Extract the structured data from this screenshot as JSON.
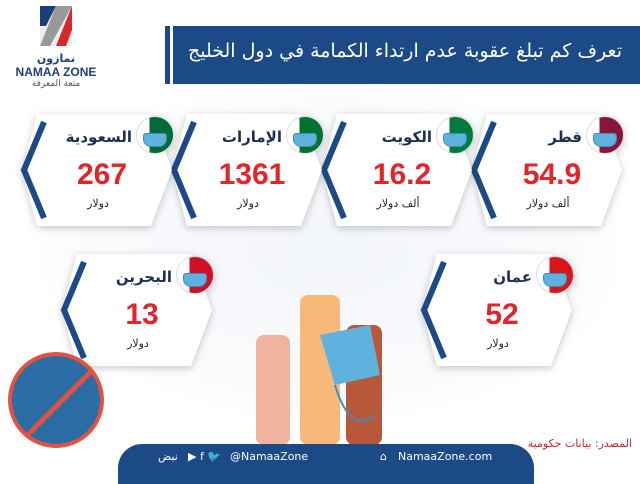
{
  "logo": {
    "arabic": "نمازون",
    "english": "NAMAA ZONE",
    "tagline": "متعة المعرفة"
  },
  "title": "تعرف كم تبلغ عقوبة عدم ارتداء الكمامة في دول الخليج",
  "cards": [
    {
      "country": "قطر",
      "value": "54.9",
      "unit": "ألف دولار",
      "flag_colors": [
        "#8a1538",
        "#ffffff"
      ]
    },
    {
      "country": "الكويت",
      "value": "16.2",
      "unit": "ألف دولار",
      "flag_colors": [
        "#007a3d",
        "#ffffff",
        "#ce1126",
        "#000000"
      ]
    },
    {
      "country": "الإمارات",
      "value": "1361",
      "unit": "دولار",
      "flag_colors": [
        "#00732f",
        "#ffffff",
        "#000000",
        "#ff0000"
      ]
    },
    {
      "country": "السعودية",
      "value": "267",
      "unit": "دولار",
      "flag_colors": [
        "#006c35",
        "#ffffff"
      ]
    },
    {
      "country": "عمان",
      "value": "52",
      "unit": "دولار",
      "flag_colors": [
        "#db161b",
        "#ffffff",
        "#008000"
      ]
    },
    {
      "country": "البحرين",
      "value": "13",
      "unit": "دولار",
      "flag_colors": [
        "#ce1126",
        "#ffffff"
      ]
    }
  ],
  "source": "المصدر: بيانات حكومية",
  "footer": {
    "website": "NamaaZone.com",
    "handle": "@NamaaZone",
    "nabd": "نبض"
  },
  "colors": {
    "navy": "#1b4a86",
    "red": "#e3252a"
  }
}
